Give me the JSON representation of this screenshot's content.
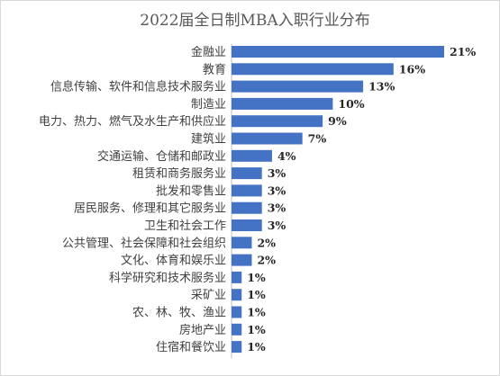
{
  "chart_data": {
    "type": "bar",
    "orientation": "horizontal",
    "title": "2022届全日制MBA入职行业分布",
    "categories": [
      "金融业",
      "教育",
      "信息传输、软件和信息技术服务业",
      "制造业",
      "电力、热力、燃气及水生产和供应业",
      "建筑业",
      "交通运输、仓储和邮政业",
      "租赁和商务服务业",
      "批发和零售业",
      "居民服务、修理和其它服务业",
      "卫生和社会工作",
      "公共管理、社会保障和社会组织",
      "文化、体育和娱乐业",
      "科学研究和技术服务业",
      "采矿业",
      "农、林、牧、渔业",
      "房地产业",
      "住宿和餐饮业"
    ],
    "values": [
      21,
      16,
      13,
      10,
      9,
      7,
      4,
      3,
      3,
      3,
      3,
      2,
      2,
      1,
      1,
      1,
      1,
      1
    ],
    "value_labels": [
      "21%",
      "16%",
      "13%",
      "10%",
      "9%",
      "7%",
      "4%",
      "3%",
      "3%",
      "3%",
      "3%",
      "2%",
      "2%",
      "1%",
      "1%",
      "1%",
      "1%",
      "1%"
    ],
    "xlim": [
      0,
      21
    ],
    "grid": false,
    "legend": "none",
    "bar_color": "#4472c4",
    "axis_color": "#bfbfbf"
  }
}
